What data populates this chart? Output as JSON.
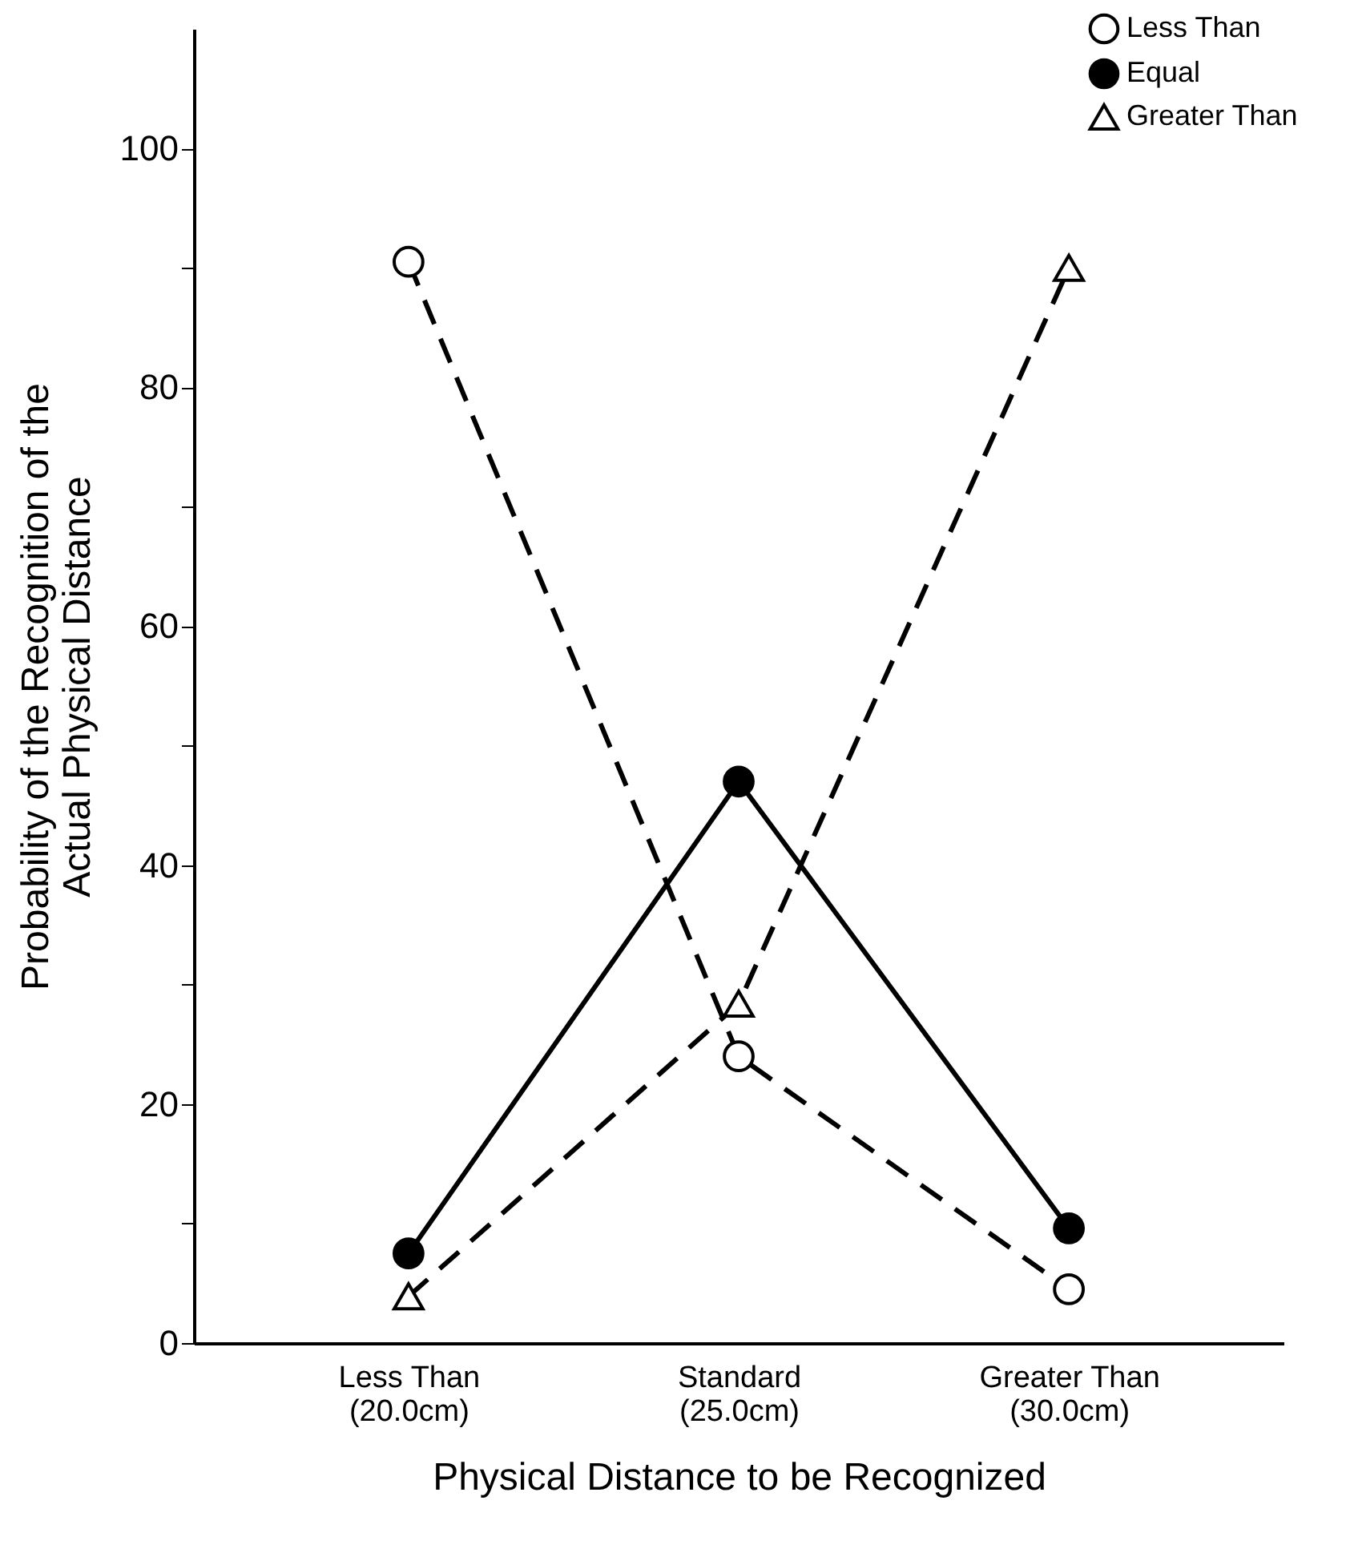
{
  "chart_data": {
    "type": "line",
    "xlabel": "Physical Distance to be Recognized",
    "ylabel": "Probability of the Recognition of the\nActual Physical Distance",
    "categories": [
      "Less Than\n(20.0cm)",
      "Standard\n(25.0cm)",
      "Greater Than\n(30.0cm)"
    ],
    "series": [
      {
        "name": "Less Than",
        "color": "#000000",
        "values": [
          90.5,
          24,
          4.5
        ],
        "marker": "circle",
        "line_style": "dashed"
      },
      {
        "name": "Equal",
        "color": "#000000",
        "values": [
          7.5,
          47,
          9.6
        ],
        "marker": "circle",
        "line_style": "solid"
      },
      {
        "name": "Greater Than",
        "color": "#000000",
        "values": [
          3.9,
          28.4,
          90
        ],
        "marker": "triangle",
        "line_style": "dashed"
      }
    ],
    "ylim": [
      0,
      110
    ],
    "yticks": [
      0,
      {
        "value": 10,
        "label": null
      },
      20,
      {
        "value": 30,
        "label": null
      },
      40,
      {
        "value": 50,
        "label": null
      },
      60,
      {
        "value": 70,
        "label": null
      },
      80,
      {
        "value": 90,
        "label": null
      },
      100
    ],
    "grid": false,
    "legend": "top right"
  }
}
